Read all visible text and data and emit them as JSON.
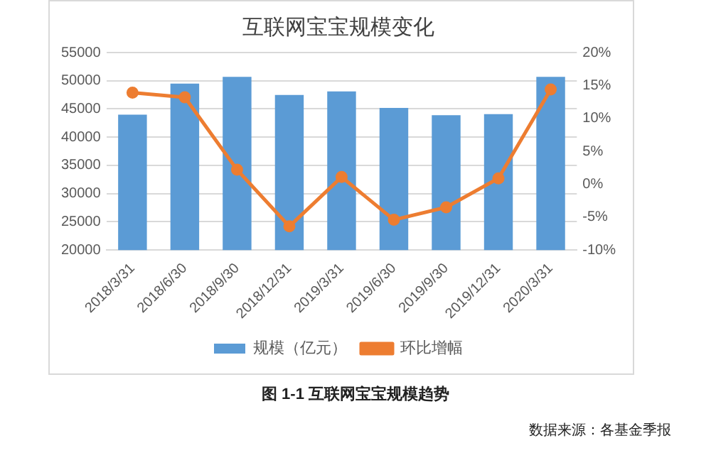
{
  "chart_data": {
    "type": "bar",
    "title": "互联网宝宝规模变化",
    "categories": [
      "2018/3/31",
      "2018/6/30",
      "2018/9/30",
      "2018/12/31",
      "2019/3/31",
      "2019/6/30",
      "2019/9/30",
      "2019/12/31",
      "2020/3/31"
    ],
    "series": [
      {
        "name": "规模（亿元）",
        "color": "#5b9bd5",
        "values": [
          44000,
          49500,
          50700,
          47500,
          48100,
          45200,
          43900,
          44100,
          50700
        ]
      },
      {
        "name": "环比增幅",
        "type": "line",
        "axis": "y2",
        "color": "#ed7d31",
        "marker": "circle",
        "values": [
          13.9,
          13.2,
          2.2,
          -6.4,
          1.1,
          -5.4,
          -3.5,
          0.9,
          14.4
        ]
      }
    ],
    "ylim": [
      20000,
      55000
    ],
    "yticks": [
      20000,
      25000,
      30000,
      35000,
      40000,
      45000,
      50000,
      55000
    ],
    "y2lim": [
      -10,
      20
    ],
    "y2ticks": [
      {
        "value": -10,
        "label": "-10%"
      },
      {
        "value": -5,
        "label": "-5%"
      },
      {
        "value": 0,
        "label": "0%"
      },
      {
        "value": 5,
        "label": "5%"
      },
      {
        "value": 10,
        "label": "10%"
      },
      {
        "value": 15,
        "label": "15%"
      },
      {
        "value": 20,
        "label": "20%"
      }
    ],
    "grid": "y",
    "legend": "bottom",
    "annotations": [
      "图 1-1 互联网宝宝规模趋势",
      "数据来源：各基金季报"
    ]
  }
}
